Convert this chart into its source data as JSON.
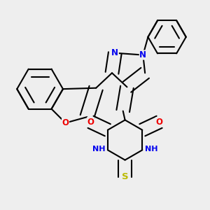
{
  "background_color": "#eeeeee",
  "bond_color": "#000000",
  "bond_width": 1.5,
  "atom_colors": {
    "N": "#0000ee",
    "O": "#ee0000",
    "S": "#bbbb00",
    "C": "#000000"
  },
  "font_size_atom": 8.5,
  "fig_width": 3.0,
  "fig_height": 3.0,
  "dpi": 100
}
